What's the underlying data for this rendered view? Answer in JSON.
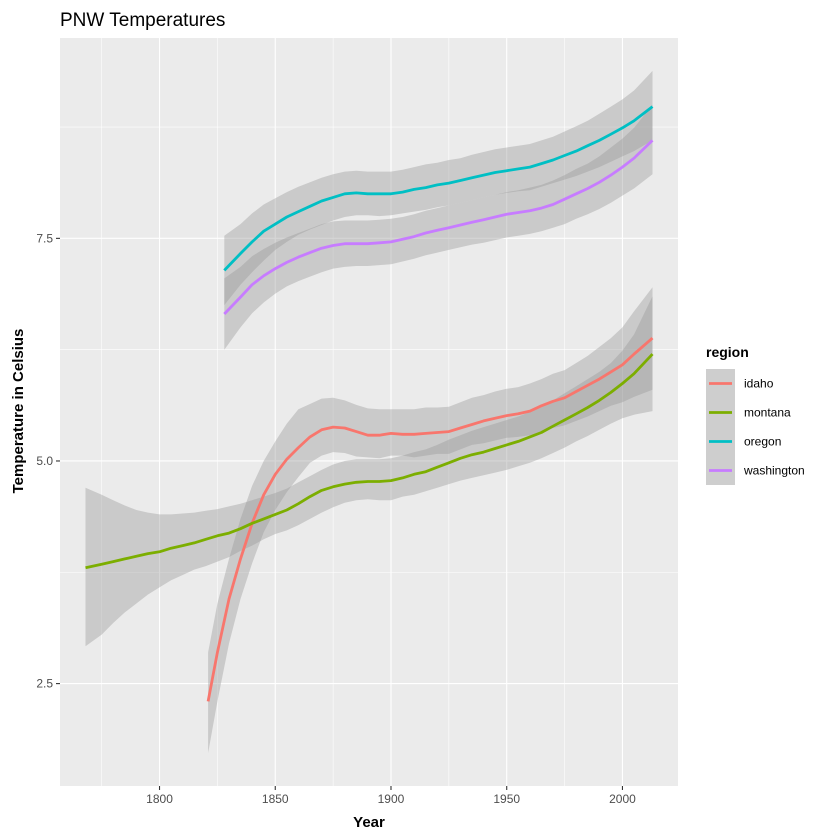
{
  "chart_data": {
    "type": "line",
    "title": "PNW Temperatures",
    "xlabel": "Year",
    "ylabel": "Temperature in Celsius",
    "xlim": [
      1757,
      2024
    ],
    "ylim": [
      1.35,
      9.75
    ],
    "x_ticks": [
      1800,
      1850,
      1900,
      1950,
      2000
    ],
    "x_tick_labels": [
      "1800",
      "1850",
      "1900",
      "1950",
      "2000"
    ],
    "y_ticks": [
      2.5,
      5.0,
      7.5
    ],
    "y_tick_labels": [
      "2.5",
      "5.0",
      "7.5"
    ],
    "grid": true,
    "legend": {
      "title": "region",
      "position": "right"
    },
    "series": [
      {
        "name": "idaho",
        "color": "#F8766D",
        "points": [
          [
            1821,
            2.3,
            1.72,
            2.85
          ],
          [
            1825,
            2.85,
            2.3,
            3.4
          ],
          [
            1830,
            3.45,
            2.95,
            3.9
          ],
          [
            1835,
            3.9,
            3.45,
            4.35
          ],
          [
            1840,
            4.3,
            3.85,
            4.72
          ],
          [
            1845,
            4.62,
            4.2,
            5.0
          ],
          [
            1850,
            4.85,
            4.45,
            5.22
          ],
          [
            1855,
            5.02,
            4.65,
            5.42
          ],
          [
            1860,
            5.15,
            4.82,
            5.58
          ],
          [
            1865,
            5.27,
            4.98,
            5.64
          ],
          [
            1870,
            5.35,
            5.06,
            5.7
          ],
          [
            1875,
            5.38,
            5.1,
            5.71
          ],
          [
            1880,
            5.37,
            5.09,
            5.68
          ],
          [
            1885,
            5.33,
            5.05,
            5.63
          ],
          [
            1890,
            5.29,
            5.04,
            5.59
          ],
          [
            1895,
            5.29,
            5.03,
            5.58
          ],
          [
            1900,
            5.31,
            5.06,
            5.58
          ],
          [
            1905,
            5.3,
            5.06,
            5.58
          ],
          [
            1910,
            5.3,
            5.04,
            5.58
          ],
          [
            1915,
            5.31,
            5.06,
            5.6
          ],
          [
            1920,
            5.32,
            5.08,
            5.6
          ],
          [
            1925,
            5.33,
            5.08,
            5.61
          ],
          [
            1930,
            5.37,
            5.13,
            5.66
          ],
          [
            1935,
            5.41,
            5.18,
            5.71
          ],
          [
            1940,
            5.45,
            5.2,
            5.74
          ],
          [
            1945,
            5.48,
            5.23,
            5.78
          ],
          [
            1950,
            5.51,
            5.26,
            5.81
          ],
          [
            1955,
            5.53,
            5.27,
            5.83
          ],
          [
            1960,
            5.56,
            5.29,
            5.87
          ],
          [
            1965,
            5.62,
            5.32,
            5.92
          ],
          [
            1970,
            5.67,
            5.37,
            5.98
          ],
          [
            1975,
            5.71,
            5.4,
            6.02
          ],
          [
            1980,
            5.78,
            5.45,
            6.1
          ],
          [
            1985,
            5.85,
            5.5,
            6.18
          ],
          [
            1990,
            5.92,
            5.56,
            6.28
          ],
          [
            1995,
            6.0,
            5.62,
            6.38
          ],
          [
            2000,
            6.08,
            5.66,
            6.5
          ],
          [
            2005,
            6.2,
            5.72,
            6.68
          ],
          [
            2013,
            6.38,
            5.8,
            6.95
          ]
        ]
      },
      {
        "name": "montana",
        "color": "#7CAE00",
        "points": [
          [
            1768,
            3.8,
            2.92,
            4.7
          ],
          [
            1775,
            3.84,
            3.05,
            4.62
          ],
          [
            1780,
            3.87,
            3.18,
            4.56
          ],
          [
            1785,
            3.9,
            3.3,
            4.5
          ],
          [
            1790,
            3.93,
            3.4,
            4.45
          ],
          [
            1795,
            3.96,
            3.5,
            4.42
          ],
          [
            1800,
            3.98,
            3.58,
            4.4
          ],
          [
            1805,
            4.02,
            3.66,
            4.4
          ],
          [
            1810,
            4.05,
            3.72,
            4.41
          ],
          [
            1815,
            4.08,
            3.78,
            4.42
          ],
          [
            1820,
            4.12,
            3.82,
            4.44
          ],
          [
            1825,
            4.16,
            3.87,
            4.46
          ],
          [
            1830,
            4.19,
            3.92,
            4.49
          ],
          [
            1835,
            4.24,
            3.99,
            4.52
          ],
          [
            1840,
            4.3,
            4.05,
            4.56
          ],
          [
            1845,
            4.35,
            4.12,
            4.6
          ],
          [
            1850,
            4.4,
            4.18,
            4.64
          ],
          [
            1855,
            4.45,
            4.22,
            4.69
          ],
          [
            1860,
            4.52,
            4.28,
            4.76
          ],
          [
            1865,
            4.6,
            4.35,
            4.83
          ],
          [
            1870,
            4.67,
            4.42,
            4.9
          ],
          [
            1875,
            4.71,
            4.48,
            4.96
          ],
          [
            1880,
            4.74,
            4.53,
            5.0
          ],
          [
            1885,
            4.76,
            4.56,
            5.02
          ],
          [
            1890,
            4.77,
            4.57,
            5.02
          ],
          [
            1895,
            4.77,
            4.56,
            5.02
          ],
          [
            1900,
            4.78,
            4.56,
            5.03
          ],
          [
            1905,
            4.81,
            4.6,
            5.06
          ],
          [
            1910,
            4.85,
            4.62,
            5.1
          ],
          [
            1915,
            4.88,
            4.66,
            5.13
          ],
          [
            1920,
            4.93,
            4.7,
            5.18
          ],
          [
            1925,
            4.98,
            4.74,
            5.24
          ],
          [
            1930,
            5.03,
            4.78,
            5.29
          ],
          [
            1935,
            5.07,
            4.81,
            5.34
          ],
          [
            1940,
            5.1,
            4.84,
            5.38
          ],
          [
            1945,
            5.14,
            4.87,
            5.42
          ],
          [
            1950,
            5.18,
            4.9,
            5.46
          ],
          [
            1955,
            5.22,
            4.94,
            5.5
          ],
          [
            1960,
            5.27,
            4.98,
            5.55
          ],
          [
            1965,
            5.32,
            5.03,
            5.6
          ],
          [
            1970,
            5.39,
            5.09,
            5.68
          ],
          [
            1975,
            5.46,
            5.15,
            5.76
          ],
          [
            1980,
            5.53,
            5.22,
            5.84
          ],
          [
            1985,
            5.6,
            5.28,
            5.92
          ],
          [
            1990,
            5.68,
            5.35,
            6.0
          ],
          [
            1995,
            5.77,
            5.42,
            6.1
          ],
          [
            2000,
            5.87,
            5.48,
            6.24
          ],
          [
            2005,
            5.98,
            5.52,
            6.42
          ],
          [
            2013,
            6.2,
            5.56,
            6.85
          ]
        ]
      },
      {
        "name": "oregon",
        "color": "#00BFC4",
        "points": [
          [
            1828,
            7.14,
            6.75,
            7.53
          ],
          [
            1835,
            7.33,
            6.98,
            7.66
          ],
          [
            1840,
            7.46,
            7.12,
            7.78
          ],
          [
            1845,
            7.58,
            7.25,
            7.88
          ],
          [
            1850,
            7.66,
            7.37,
            7.95
          ],
          [
            1855,
            7.74,
            7.46,
            8.02
          ],
          [
            1860,
            7.8,
            7.54,
            8.08
          ],
          [
            1865,
            7.86,
            7.6,
            8.13
          ],
          [
            1870,
            7.92,
            7.65,
            8.18
          ],
          [
            1875,
            7.96,
            7.7,
            8.22
          ],
          [
            1880,
            8.0,
            7.74,
            8.25
          ],
          [
            1885,
            8.01,
            7.76,
            8.26
          ],
          [
            1890,
            8.0,
            7.76,
            8.25
          ],
          [
            1895,
            8.0,
            7.75,
            8.25
          ],
          [
            1900,
            8.0,
            7.76,
            8.25
          ],
          [
            1905,
            8.02,
            7.78,
            8.27
          ],
          [
            1910,
            8.05,
            7.8,
            8.3
          ],
          [
            1915,
            8.07,
            7.82,
            8.33
          ],
          [
            1920,
            8.1,
            7.85,
            8.35
          ],
          [
            1925,
            8.12,
            7.87,
            8.38
          ],
          [
            1930,
            8.15,
            7.9,
            8.4
          ],
          [
            1935,
            8.18,
            7.93,
            8.44
          ],
          [
            1940,
            8.21,
            7.96,
            8.47
          ],
          [
            1945,
            8.24,
            7.99,
            8.5
          ],
          [
            1950,
            8.26,
            8.01,
            8.52
          ],
          [
            1955,
            8.28,
            8.03,
            8.54
          ],
          [
            1960,
            8.3,
            8.04,
            8.56
          ],
          [
            1965,
            8.34,
            8.08,
            8.6
          ],
          [
            1970,
            8.38,
            8.12,
            8.64
          ],
          [
            1975,
            8.43,
            8.16,
            8.7
          ],
          [
            1980,
            8.48,
            8.2,
            8.76
          ],
          [
            1985,
            8.54,
            8.25,
            8.82
          ],
          [
            1990,
            8.6,
            8.3,
            8.9
          ],
          [
            1995,
            8.67,
            8.36,
            8.98
          ],
          [
            2000,
            8.74,
            8.42,
            9.06
          ],
          [
            2005,
            8.82,
            8.48,
            9.16
          ],
          [
            2013,
            8.98,
            8.6,
            9.38
          ]
        ]
      },
      {
        "name": "washington",
        "color": "#C77CFF",
        "points": [
          [
            1828,
            6.65,
            6.25,
            7.05
          ],
          [
            1835,
            6.84,
            6.5,
            7.18
          ],
          [
            1840,
            6.98,
            6.66,
            7.3
          ],
          [
            1845,
            7.08,
            6.78,
            7.38
          ],
          [
            1850,
            7.16,
            6.88,
            7.45
          ],
          [
            1855,
            7.23,
            6.96,
            7.51
          ],
          [
            1860,
            7.29,
            7.02,
            7.56
          ],
          [
            1865,
            7.34,
            7.07,
            7.61
          ],
          [
            1870,
            7.39,
            7.12,
            7.66
          ],
          [
            1875,
            7.42,
            7.16,
            7.69
          ],
          [
            1880,
            7.44,
            7.18,
            7.7
          ],
          [
            1885,
            7.44,
            7.19,
            7.7
          ],
          [
            1890,
            7.44,
            7.19,
            7.7
          ],
          [
            1895,
            7.45,
            7.2,
            7.71
          ],
          [
            1900,
            7.46,
            7.21,
            7.72
          ],
          [
            1905,
            7.49,
            7.24,
            7.74
          ],
          [
            1910,
            7.52,
            7.27,
            7.77
          ],
          [
            1915,
            7.56,
            7.31,
            7.81
          ],
          [
            1920,
            7.59,
            7.34,
            7.84
          ],
          [
            1925,
            7.62,
            7.37,
            7.87
          ],
          [
            1930,
            7.65,
            7.4,
            7.9
          ],
          [
            1935,
            7.68,
            7.43,
            7.93
          ],
          [
            1940,
            7.71,
            7.45,
            7.96
          ],
          [
            1945,
            7.74,
            7.48,
            7.99
          ],
          [
            1950,
            7.77,
            7.51,
            8.02
          ],
          [
            1955,
            7.79,
            7.53,
            8.04
          ],
          [
            1960,
            7.81,
            7.55,
            8.07
          ],
          [
            1965,
            7.84,
            7.58,
            8.1
          ],
          [
            1970,
            7.88,
            7.62,
            8.15
          ],
          [
            1975,
            7.94,
            7.66,
            8.21
          ],
          [
            1980,
            8.0,
            7.72,
            8.28
          ],
          [
            1985,
            8.06,
            7.77,
            8.34
          ],
          [
            1990,
            8.13,
            7.83,
            8.42
          ],
          [
            1995,
            8.21,
            7.9,
            8.52
          ],
          [
            2000,
            8.3,
            7.98,
            8.62
          ],
          [
            2005,
            8.4,
            8.06,
            8.74
          ],
          [
            2013,
            8.6,
            8.22,
            9.0
          ]
        ]
      }
    ]
  }
}
